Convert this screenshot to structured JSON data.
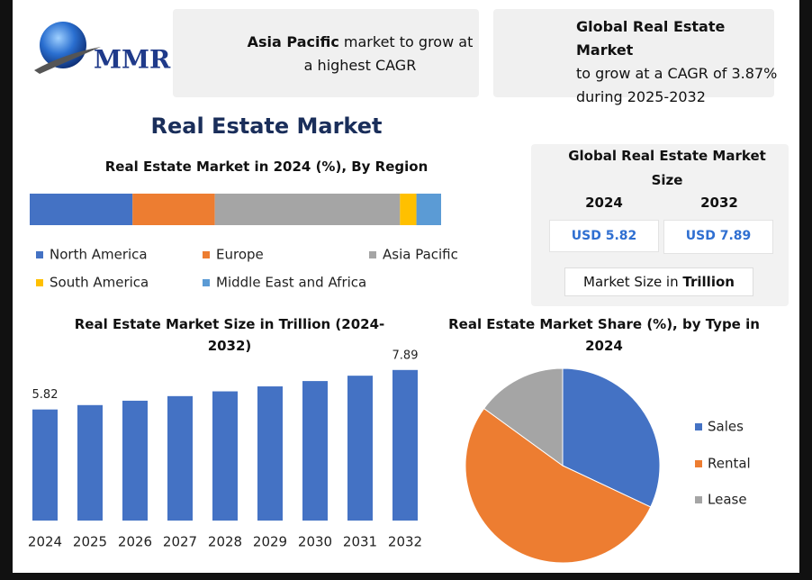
{
  "logo": {
    "text": "MMR"
  },
  "cards": [
    {
      "highlight": "Asia Pacific",
      "text": "market to grow at a highest CAGR"
    },
    {
      "highlight": "Global Real Estate Market",
      "text": "to grow at a CAGR of 3.87% during 2025-2032"
    }
  ],
  "title": "Real Estate Market",
  "market_size": {
    "title": "Global Real Estate Market Size",
    "years": [
      "2024",
      "2032"
    ],
    "values": [
      "USD 5.82",
      "USD 7.89"
    ],
    "note": "Market Size in",
    "note_unit": "Trillion"
  },
  "chart_data": [
    {
      "type": "bar",
      "orientation": "horizontal",
      "stacked": true,
      "title": "Real Estate Market in 2024 (%), By Region",
      "xlim": [
        0,
        100
      ],
      "series": [
        {
          "name": "North America",
          "color": "#4472c4",
          "values": [
            25
          ]
        },
        {
          "name": "Europe",
          "color": "#ed7d31",
          "values": [
            20
          ]
        },
        {
          "name": "Asia Pacific",
          "color": "#a5a5a5",
          "values": [
            45
          ]
        },
        {
          "name": "South America",
          "color": "#ffc000",
          "values": [
            4
          ]
        },
        {
          "name": "Middle East and Africa",
          "color": "#5b9bd5",
          "values": [
            6
          ]
        }
      ]
    },
    {
      "type": "bar",
      "orientation": "vertical",
      "title": "Real Estate Market Size in Trillion (2024-2032)",
      "categories": [
        "2024",
        "2025",
        "2026",
        "2027",
        "2028",
        "2029",
        "2030",
        "2031",
        "2032"
      ],
      "values": [
        5.82,
        6.05,
        6.28,
        6.52,
        6.77,
        7.03,
        7.31,
        7.59,
        7.89
      ],
      "value_labels": [
        "5.82",
        null,
        null,
        null,
        null,
        null,
        null,
        null,
        "7.89"
      ],
      "color": "#4472c4",
      "ylim": [
        0,
        8.4
      ]
    },
    {
      "type": "pie",
      "title": "Real Estate Market Share (%), by Type in 2024",
      "categories": [
        "Sales",
        "Rental",
        "Lease"
      ],
      "values": [
        32,
        53,
        15
      ],
      "colors": [
        "#4472c4",
        "#ed7d31",
        "#a5a5a5"
      ]
    }
  ]
}
